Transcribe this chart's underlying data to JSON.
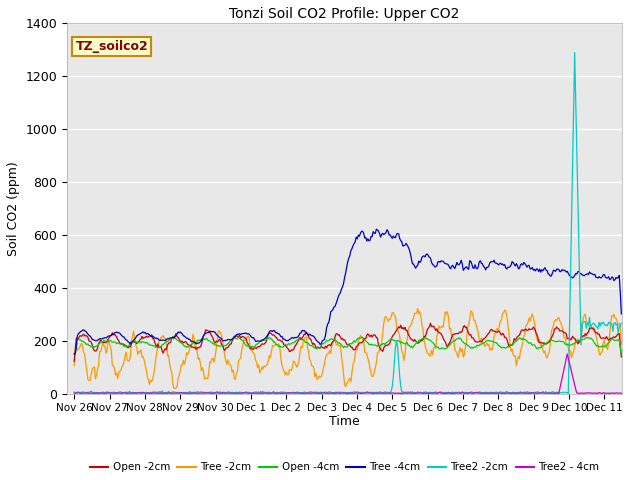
{
  "title": "Tonzi Soil CO2 Profile: Upper CO2",
  "ylabel": "Soil CO2 (ppm)",
  "xlabel": "Time",
  "watermark": "TZ_soilco2",
  "ylim": [
    0,
    1400
  ],
  "background_color": "#e8e8e8",
  "series_colors": {
    "Open -2cm": "#cc0000",
    "Tree -2cm": "#ff9900",
    "Open -4cm": "#00cc00",
    "Tree -4cm": "#0000cc",
    "Tree2 -2cm": "#00cccc",
    "Tree2 -4cm": "#cc00cc"
  },
  "xtick_labels": [
    "Nov 26",
    "Nov 27",
    "Nov 28",
    "Nov 29",
    "Nov 30",
    "Dec 1",
    "Dec 2",
    "Dec 3",
    "Dec 4",
    "Dec 5",
    "Dec 6",
    "Dec 7",
    "Dec 8",
    "Dec 9",
    "Dec 10",
    "Dec 11"
  ],
  "xtick_positions": [
    0,
    1,
    2,
    3,
    4,
    5,
    6,
    7,
    8,
    9,
    10,
    11,
    12,
    13,
    14,
    15
  ],
  "ytick_positions": [
    0,
    200,
    400,
    600,
    800,
    1000,
    1200,
    1400
  ],
  "legend_labels": [
    "Open -2cm",
    "Tree -2cm",
    "Open -4cm",
    "Tree -4cm",
    "Tree2 -2cm",
    "Tree2 -4cm"
  ]
}
